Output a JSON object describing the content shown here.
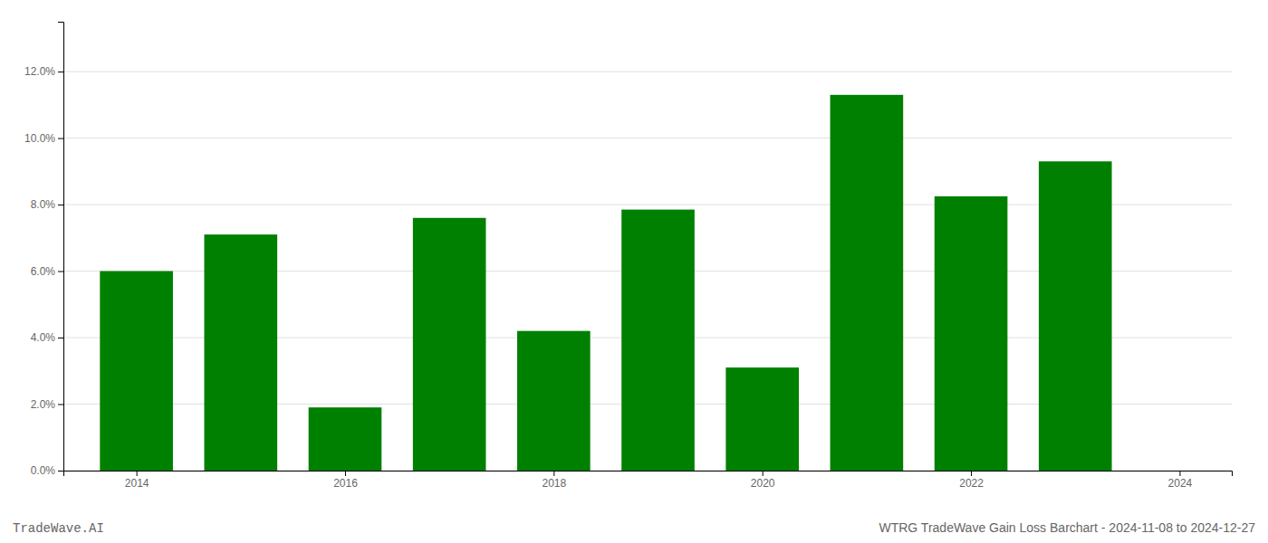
{
  "chart_data": {
    "type": "bar",
    "title": "WTRG TradeWave Gain Loss Barchart - 2024-11-08 to 2024-12-27",
    "annotations": [
      "TradeWave.AI"
    ],
    "x": [
      2014,
      2015,
      2016,
      2017,
      2018,
      2019,
      2020,
      2021,
      2022,
      2023
    ],
    "values": [
      0.06,
      0.071,
      0.019,
      0.076,
      0.042,
      0.0785,
      0.031,
      0.113,
      0.0825,
      0.093
    ],
    "color": "#008000",
    "xlim": [
      2013.3,
      2024.5
    ],
    "xticks": [
      2014,
      2016,
      2018,
      2020,
      2022,
      2024
    ],
    "ylim": [
      0,
      0.135
    ],
    "yticks": [
      {
        "value": 0.0,
        "label": "0.0%"
      },
      {
        "value": 0.02,
        "label": "2.0%"
      },
      {
        "value": 0.04,
        "label": "4.0%"
      },
      {
        "value": 0.06,
        "label": "6.0%"
      },
      {
        "value": 0.08,
        "label": "8.0%"
      },
      {
        "value": 0.1,
        "label": "10.0%"
      },
      {
        "value": 0.12,
        "label": "12.0%"
      }
    ],
    "grid": true
  }
}
